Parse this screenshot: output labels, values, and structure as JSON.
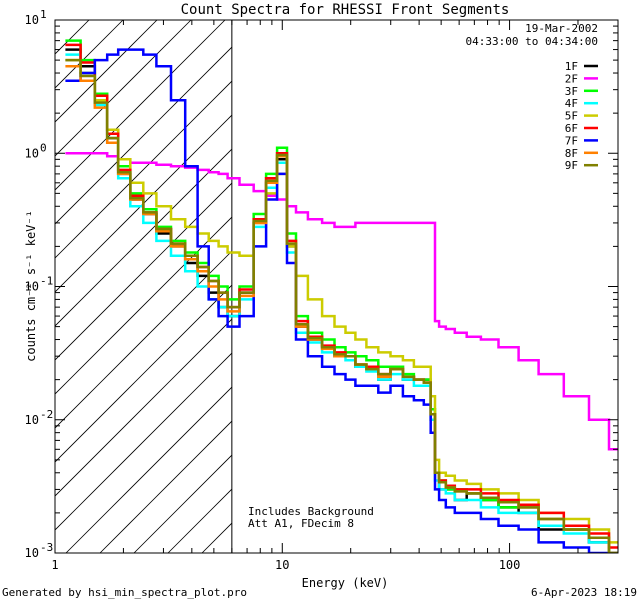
{
  "chart_data": {
    "type": "line",
    "title": "Count Spectra for RHESSI Front Segments",
    "xlabel": "Energy (keV)",
    "ylabel": "counts cm⁻² s⁻¹ keV⁻¹",
    "xscale": "log",
    "yscale": "log",
    "xlim": [
      1,
      300
    ],
    "ylim": [
      0.001,
      10
    ],
    "grid": false,
    "x_tick_labels": [
      {
        "value": 1,
        "label": "1"
      },
      {
        "value": 10,
        "label": "10"
      },
      {
        "value": 100,
        "label": "100"
      }
    ],
    "y_tick_labels": [
      {
        "value": 10,
        "base": "10",
        "exp": "1"
      },
      {
        "value": 1,
        "base": "10",
        "exp": "0"
      },
      {
        "value": 0.1,
        "base": "10",
        "exp": "-1"
      },
      {
        "value": 0.01,
        "base": "10",
        "exp": "-2"
      },
      {
        "value": 0.001,
        "base": "10",
        "exp": "-3"
      }
    ],
    "date": "19-Mar-2002",
    "time_range": "04:33:00 to 04:34:00",
    "annotations": [
      "Includes Background",
      "Att A1, FDecim 8"
    ],
    "hatched_region_upper_keV": 6,
    "legend_position": "top-right",
    "footer_left": "Generated by hsi_min_spectra_plot.pro",
    "footer_right": "6-Apr-2023 18:19",
    "shared_x_keV": [
      1.2,
      1.4,
      1.6,
      1.8,
      2.0,
      2.3,
      2.6,
      3.0,
      3.5,
      4.0,
      4.5,
      5.0,
      5.5,
      6.0,
      7.0,
      8.0,
      9.0,
      10.0,
      11.0,
      12.0,
      14.0,
      16.0,
      18.0,
      20.0,
      22.0,
      25.0,
      28.0,
      32.0,
      36.0,
      40.0,
      44.0,
      46.0,
      48.0,
      50.0,
      55.0,
      60.0,
      70.0,
      80.0,
      100.0,
      120.0,
      150.0,
      200.0,
      250.0,
      300.0
    ],
    "series": [
      {
        "name": "1F",
        "color": "#000000",
        "values": [
          6.0,
          4.5,
          2.5,
          1.3,
          0.7,
          0.45,
          0.35,
          0.25,
          0.2,
          0.15,
          0.12,
          0.09,
          0.07,
          0.06,
          0.09,
          0.3,
          0.6,
          0.9,
          0.2,
          0.05,
          0.04,
          0.035,
          0.03,
          0.03,
          0.025,
          0.025,
          0.02,
          0.025,
          0.02,
          0.02,
          0.02,
          0.01,
          0.004,
          0.003,
          0.003,
          0.0025,
          0.0028,
          0.0025,
          0.0022,
          0.002,
          0.0015,
          0.0015,
          0.0012,
          0.001
        ]
      },
      {
        "name": "2F",
        "color": "#ff00ff",
        "values": [
          1.0,
          1.0,
          1.0,
          0.95,
          0.9,
          0.85,
          0.85,
          0.82,
          0.8,
          0.78,
          0.75,
          0.72,
          0.7,
          0.65,
          0.58,
          0.52,
          0.48,
          0.45,
          0.4,
          0.36,
          0.32,
          0.3,
          0.28,
          0.28,
          0.3,
          0.3,
          0.3,
          0.3,
          0.3,
          0.3,
          0.3,
          0.3,
          0.055,
          0.05,
          0.048,
          0.045,
          0.042,
          0.04,
          0.035,
          0.028,
          0.022,
          0.015,
          0.01,
          0.006
        ]
      },
      {
        "name": "3F",
        "color": "#00ff00",
        "values": [
          7.0,
          5.0,
          2.8,
          1.5,
          0.8,
          0.5,
          0.38,
          0.28,
          0.22,
          0.18,
          0.15,
          0.12,
          0.1,
          0.08,
          0.1,
          0.35,
          0.7,
          1.1,
          0.25,
          0.06,
          0.045,
          0.04,
          0.035,
          0.032,
          0.03,
          0.028,
          0.025,
          0.025,
          0.022,
          0.02,
          0.02,
          0.012,
          0.004,
          0.0035,
          0.003,
          0.003,
          0.0028,
          0.0025,
          0.0022,
          0.0022,
          0.0018,
          0.0015,
          0.0013,
          0.001
        ]
      },
      {
        "name": "4F",
        "color": "#00ffff",
        "values": [
          5.5,
          4.0,
          2.3,
          1.2,
          0.65,
          0.4,
          0.3,
          0.22,
          0.17,
          0.13,
          0.1,
          0.08,
          0.07,
          0.06,
          0.08,
          0.28,
          0.55,
          0.85,
          0.18,
          0.045,
          0.038,
          0.032,
          0.03,
          0.028,
          0.025,
          0.023,
          0.02,
          0.022,
          0.02,
          0.018,
          0.018,
          0.01,
          0.0035,
          0.003,
          0.0028,
          0.0025,
          0.0025,
          0.0022,
          0.002,
          0.002,
          0.0016,
          0.0014,
          0.0012,
          0.001
        ]
      },
      {
        "name": "5F",
        "color": "#cccc00",
        "values": [
          5.0,
          4.0,
          2.5,
          1.5,
          0.9,
          0.6,
          0.5,
          0.4,
          0.32,
          0.28,
          0.25,
          0.22,
          0.2,
          0.18,
          0.17,
          0.3,
          0.5,
          0.7,
          0.2,
          0.12,
          0.08,
          0.06,
          0.05,
          0.045,
          0.04,
          0.035,
          0.032,
          0.03,
          0.028,
          0.025,
          0.025,
          0.015,
          0.005,
          0.004,
          0.0038,
          0.0035,
          0.0033,
          0.003,
          0.0028,
          0.0025,
          0.002,
          0.0018,
          0.0015,
          0.0012
        ]
      },
      {
        "name": "6F",
        "color": "#ff0000",
        "values": [
          6.5,
          4.8,
          2.7,
          1.4,
          0.75,
          0.48,
          0.36,
          0.27,
          0.21,
          0.17,
          0.14,
          0.11,
          0.09,
          0.07,
          0.095,
          0.32,
          0.65,
          1.0,
          0.22,
          0.055,
          0.042,
          0.036,
          0.032,
          0.03,
          0.026,
          0.025,
          0.022,
          0.024,
          0.021,
          0.02,
          0.019,
          0.011,
          0.004,
          0.0035,
          0.0032,
          0.003,
          0.003,
          0.0028,
          0.0025,
          0.0023,
          0.002,
          0.0016,
          0.0014,
          0.0011
        ]
      },
      {
        "name": "7F",
        "color": "#0000ff",
        "values": [
          3.5,
          4.0,
          5.0,
          5.5,
          6.0,
          6.0,
          5.5,
          4.5,
          2.5,
          0.8,
          0.2,
          0.08,
          0.06,
          0.05,
          0.06,
          0.2,
          0.45,
          0.7,
          0.15,
          0.04,
          0.03,
          0.025,
          0.022,
          0.02,
          0.018,
          0.018,
          0.016,
          0.018,
          0.015,
          0.014,
          0.013,
          0.008,
          0.003,
          0.0025,
          0.0022,
          0.002,
          0.002,
          0.0018,
          0.0016,
          0.0015,
          0.0012,
          0.0011,
          0.001,
          0.001
        ]
      },
      {
        "name": "8F",
        "color": "#ff8000",
        "values": [
          4.5,
          3.5,
          2.2,
          1.2,
          0.7,
          0.45,
          0.35,
          0.26,
          0.2,
          0.16,
          0.13,
          0.1,
          0.08,
          0.065,
          0.085,
          0.3,
          0.6,
          0.95,
          0.21,
          0.05,
          0.04,
          0.034,
          0.03,
          0.03,
          0.026,
          0.024,
          0.021,
          0.024,
          0.021,
          0.02,
          0.019,
          0.011,
          0.004,
          0.0034,
          0.0031,
          0.0029,
          0.0028,
          0.0026,
          0.0024,
          0.0022,
          0.0018,
          0.0015,
          0.0013,
          0.001
        ]
      },
      {
        "name": "9F",
        "color": "#808000",
        "values": [
          5.0,
          3.8,
          2.4,
          1.3,
          0.72,
          0.46,
          0.36,
          0.27,
          0.21,
          0.17,
          0.14,
          0.11,
          0.09,
          0.07,
          0.09,
          0.31,
          0.62,
          0.97,
          0.21,
          0.052,
          0.041,
          0.035,
          0.031,
          0.03,
          0.026,
          0.024,
          0.022,
          0.024,
          0.021,
          0.02,
          0.019,
          0.011,
          0.004,
          0.0034,
          0.0031,
          0.0029,
          0.0028,
          0.0026,
          0.0024,
          0.0022,
          0.0018,
          0.0015,
          0.0013,
          0.001
        ]
      }
    ]
  }
}
